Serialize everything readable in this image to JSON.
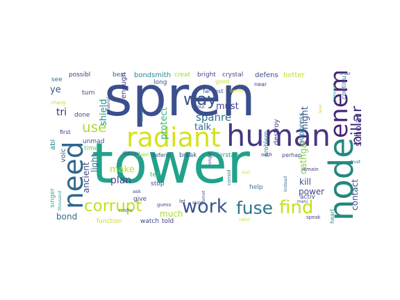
{
  "words": [
    {
      "text": "spren",
      "color": "#3b4f8c",
      "v": false
    },
    {
      "text": "tower",
      "color": "#21a28a",
      "v": false
    },
    {
      "text": "radiant",
      "color": "#d6e21b",
      "v": false
    },
    {
      "text": "human",
      "color": "#453682",
      "v": false
    },
    {
      "text": "node",
      "color": "#25877f",
      "v": true
    },
    {
      "text": "need",
      "color": "#31668e",
      "v": true
    },
    {
      "text": "enemi",
      "color": "#482576",
      "v": true
    },
    {
      "text": "pillar",
      "color": "#46317d",
      "v": true
    },
    {
      "text": "work",
      "color": "#3b528b",
      "v": false
    },
    {
      "text": "find",
      "color": "#c6e021",
      "v": false
    },
    {
      "text": "fuse",
      "color": "#2b758e",
      "v": false
    },
    {
      "text": "corrupt",
      "color": "#c2df23",
      "v": false
    },
    {
      "text": "way",
      "color": "#3b528b",
      "v": false
    },
    {
      "text": "use",
      "color": "#aadc32",
      "v": false
    },
    {
      "text": "scholar",
      "color": "#46327e",
      "v": true
    },
    {
      "text": "spanre",
      "color": "#2d708e",
      "v": false
    },
    {
      "text": "must",
      "color": "#433e85",
      "v": false
    },
    {
      "text": "talk",
      "color": "#31688e",
      "v": false
    },
    {
      "text": "protect",
      "color": "#35b779",
      "v": true
    },
    {
      "text": "shield",
      "color": "#1f948c",
      "v": true
    },
    {
      "text": "might",
      "color": "#39568c",
      "v": true
    },
    {
      "text": "kill",
      "color": "#3e4a89",
      "v": false
    },
    {
      "text": "power",
      "color": "#404688",
      "v": false
    },
    {
      "text": "plan",
      "color": "#3f4889",
      "v": false
    },
    {
      "text": "make",
      "color": "#b5de2b",
      "v": false
    },
    {
      "text": "oathgat",
      "color": "#86d549",
      "v": true
    },
    {
      "text": "contact",
      "color": "#3e4989",
      "v": true
    },
    {
      "text": "much",
      "color": "#a2da37",
      "v": false
    },
    {
      "text": "tri",
      "color": "#482878",
      "v": false
    },
    {
      "text": "ye",
      "color": "#3b528b",
      "v": false
    },
    {
      "text": "bond",
      "color": "#30698e",
      "v": false
    },
    {
      "text": "ancient",
      "color": "#3f4788",
      "v": true
    },
    {
      "text": "light",
      "color": "#2a788e",
      "v": true
    },
    {
      "text": "voic",
      "color": "#38598c",
      "v": true
    },
    {
      "text": "abl",
      "color": "#277f8e",
      "v": true
    },
    {
      "text": "enough",
      "color": "#46337f",
      "v": true
    },
    {
      "text": "destroy",
      "color": "#443a83",
      "v": true
    },
    {
      "text": "suppress",
      "color": "#2e6f8e",
      "v": true
    },
    {
      "text": "defens",
      "color": "#3e4c8a",
      "v": false
    },
    {
      "text": "better",
      "color": "#c0df25",
      "v": false
    },
    {
      "text": "bondsmith",
      "color": "#24878e",
      "v": false
    },
    {
      "text": "creat",
      "color": "#9dd93b",
      "v": false
    },
    {
      "text": "bright",
      "color": "#404588",
      "v": false
    },
    {
      "text": "crystal",
      "color": "#3f4788",
      "v": false
    },
    {
      "text": "possibl",
      "color": "#453882",
      "v": false
    },
    {
      "text": "best",
      "color": "#3a548c",
      "v": false
    },
    {
      "text": "see",
      "color": "#2e6e8e",
      "v": false
    },
    {
      "text": "turn",
      "color": "#414487",
      "v": false
    },
    {
      "text": "done",
      "color": "#3f4788",
      "v": false
    },
    {
      "text": "unmad",
      "color": "#3b528b",
      "v": false
    },
    {
      "text": "time",
      "color": "#5ec962",
      "v": false
    },
    {
      "text": "first",
      "color": "#46307e",
      "v": false
    },
    {
      "text": "long",
      "color": "#3d4e8a",
      "v": false
    },
    {
      "text": "far",
      "color": "#38588c",
      "v": false
    },
    {
      "text": "rest",
      "color": "#3b528b",
      "v": false
    },
    {
      "text": "seem",
      "color": "#e5e419",
      "v": false
    },
    {
      "text": "near",
      "color": "#414487",
      "v": false
    },
    {
      "text": "continu",
      "color": "#31688e",
      "v": true
    },
    {
      "text": "prevent",
      "color": "#1fa088",
      "v": true
    },
    {
      "text": "order",
      "color": "#39568c",
      "v": false
    },
    {
      "text": "leav",
      "color": "#b8de29",
      "v": true
    },
    {
      "text": "soul",
      "color": "#3f4889",
      "v": false
    },
    {
      "text": "discov",
      "color": "#3c4f8a",
      "v": false
    },
    {
      "text": "take",
      "color": "#8fd744",
      "v": false
    },
    {
      "text": "defend",
      "color": "#3b528b",
      "v": false
    },
    {
      "text": "break",
      "color": "#3d4d8a",
      "v": false
    },
    {
      "text": "understand",
      "color": "#1f958b",
      "v": false
    },
    {
      "text": "problem",
      "color": "#25848e",
      "v": true
    },
    {
      "text": "oath",
      "color": "#482979",
      "v": false
    },
    {
      "text": "perhap",
      "color": "#3e4a89",
      "v": false
    },
    {
      "text": "remain",
      "color": "#46337f",
      "v": false
    },
    {
      "text": "trust",
      "color": "#2d708e",
      "v": false
    },
    {
      "text": "tell",
      "color": "#35b779",
      "v": false
    },
    {
      "text": "stop",
      "color": "#3b528b",
      "v": false
    },
    {
      "text": "help",
      "color": "#2b748e",
      "v": false
    },
    {
      "text": "activ",
      "color": "#3b528b",
      "v": false
    },
    {
      "text": "heart",
      "color": "#21908d",
      "v": true
    },
    {
      "text": "singer",
      "color": "#29af7f",
      "v": true
    },
    {
      "text": "function",
      "color": "#c8e020",
      "v": false
    },
    {
      "text": "watch",
      "color": "#414487",
      "v": false
    },
    {
      "text": "told",
      "color": "#443983",
      "v": false
    },
    {
      "text": "give",
      "color": "#3f4788",
      "v": false
    },
    {
      "text": "ask",
      "color": "#3b528b",
      "v": false
    },
    {
      "text": "guess",
      "color": "#3d4d8a",
      "v": false
    },
    {
      "text": "let",
      "color": "#414487",
      "v": false
    },
    {
      "text": "surg",
      "color": "#3b528b",
      "v": false
    },
    {
      "text": "rushu",
      "color": "#2d708e",
      "v": false
    },
    {
      "text": "good",
      "color": "#c0df25",
      "v": false
    },
    {
      "text": "speak",
      "color": "#3f4788",
      "v": false
    },
    {
      "text": "mani",
      "color": "#414487",
      "v": false
    },
    {
      "text": "thousand",
      "color": "#21918c",
      "v": true
    },
    {
      "text": "natur",
      "color": "#c2df23",
      "v": false
    },
    {
      "text": "consid",
      "color": "#2d708e",
      "v": true
    },
    {
      "text": "instead",
      "color": "#31688e",
      "v": true
    },
    {
      "text": "soal",
      "color": "#d2e21b",
      "v": false
    },
    {
      "text": "darnet",
      "color": "#3b528b",
      "v": true
    },
    {
      "text": "longer",
      "color": "#3f4788",
      "v": true
    },
    {
      "text": "someth",
      "color": "#31688e",
      "v": true
    },
    {
      "text": "fabrial",
      "color": "#414487",
      "v": true
    },
    {
      "text": "chang",
      "color": "#bddf26",
      "v": false
    }
  ]
}
